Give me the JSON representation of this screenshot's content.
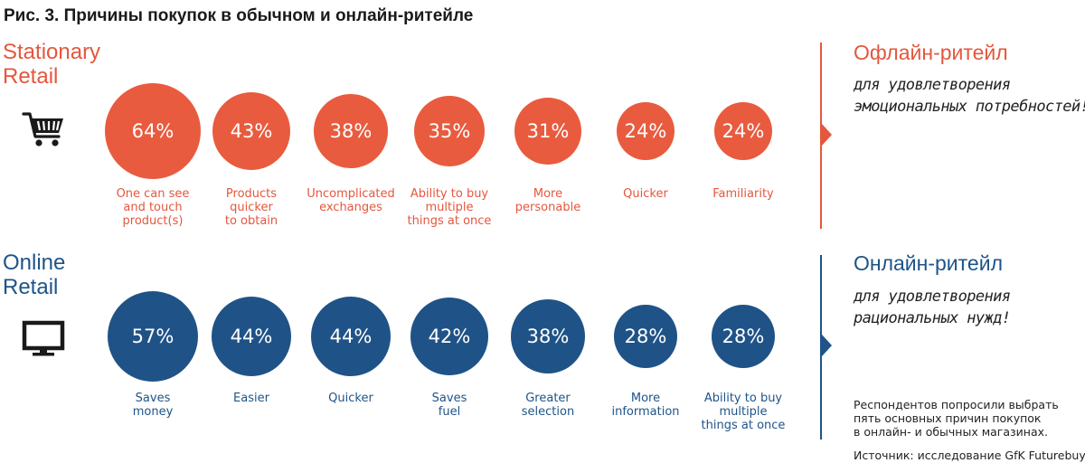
{
  "title": "Рис. 3. Причины покупок в обычном и онлайн-ритейле",
  "colors": {
    "offline": "#e95b3e",
    "online": "#1f5387"
  },
  "offline": {
    "label_lines": [
      "Stationary",
      "Retail"
    ],
    "icon": "shopping-cart-icon",
    "side_title": "Офлайн-ритейл",
    "side_desc_lines": [
      "для удовлетворения",
      "эмоциональных потребностей!"
    ],
    "items": [
      {
        "value": 64,
        "label": "64%",
        "caption": [
          "One can see",
          "and touch",
          "product(s)"
        ]
      },
      {
        "value": 43,
        "label": "43%",
        "caption": [
          "Products",
          "quicker",
          "to obtain"
        ]
      },
      {
        "value": 38,
        "label": "38%",
        "caption": [
          "Uncomplicated",
          "exchanges"
        ]
      },
      {
        "value": 35,
        "label": "35%",
        "caption": [
          "Ability to buy",
          "multiple",
          "things at once"
        ]
      },
      {
        "value": 31,
        "label": "31%",
        "caption": [
          "More",
          "personable"
        ]
      },
      {
        "value": 24,
        "label": "24%",
        "caption": [
          "Quicker"
        ]
      },
      {
        "value": 24,
        "label": "24%",
        "caption": [
          "Familiarity"
        ]
      }
    ]
  },
  "online": {
    "label_lines": [
      "Online",
      "Retail"
    ],
    "icon": "monitor-icon",
    "side_title": "Онлайн-ритейл",
    "side_desc_lines": [
      "для удовлетворения",
      "рациональных нужд!"
    ],
    "items": [
      {
        "value": 57,
        "label": "57%",
        "caption": [
          "Saves",
          "money"
        ]
      },
      {
        "value": 44,
        "label": "44%",
        "caption": [
          "Easier"
        ]
      },
      {
        "value": 44,
        "label": "44%",
        "caption": [
          "Quicker"
        ]
      },
      {
        "value": 42,
        "label": "42%",
        "caption": [
          "Saves",
          "fuel"
        ]
      },
      {
        "value": 38,
        "label": "38%",
        "caption": [
          "Greater",
          "selection"
        ]
      },
      {
        "value": 28,
        "label": "28%",
        "caption": [
          "More",
          "information"
        ]
      },
      {
        "value": 28,
        "label": "28%",
        "caption": [
          "Ability to buy",
          "multiple",
          "things at once"
        ]
      }
    ]
  },
  "note_lines": [
    "Респондентов попросили выбрать",
    "пять основных причин покупок",
    "в онлайн- и обычных магазинах."
  ],
  "source": "Источник: исследование GfK Futurebuy"
}
